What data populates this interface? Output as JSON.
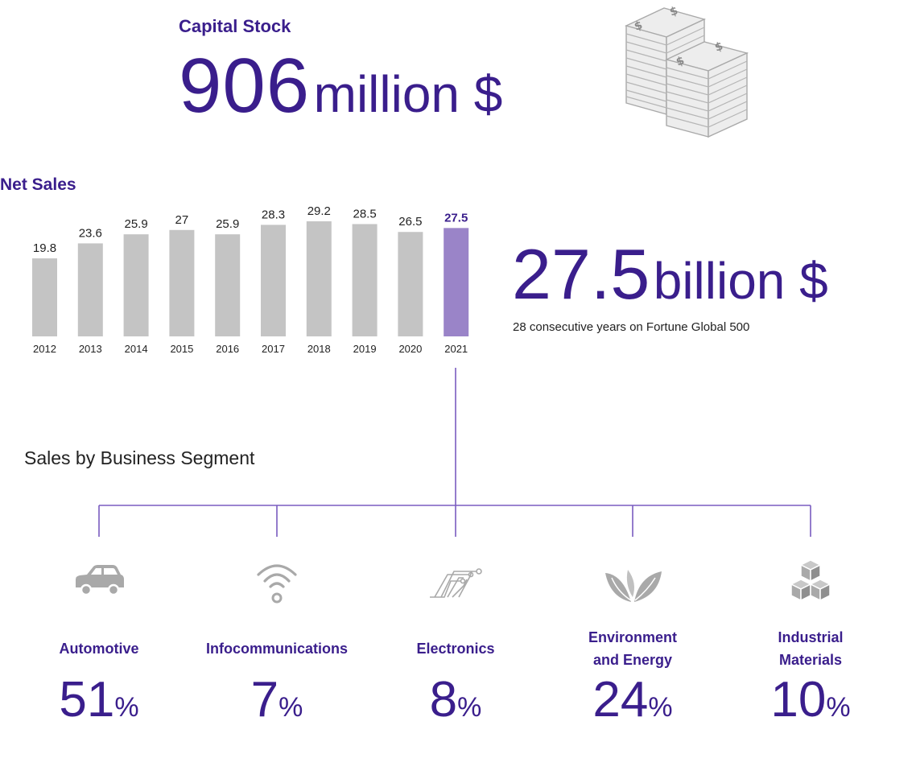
{
  "capital": {
    "label": "Capital Stock",
    "value": "906",
    "unit": "million $"
  },
  "net_sales": {
    "label": "Net Sales",
    "headline_value": "27.5",
    "headline_unit": "billion $",
    "note": "28 consecutive years on Fortune Global 500"
  },
  "segments_title": "Sales by Business Segment",
  "segments": [
    {
      "name_lines": [
        "Automotive"
      ],
      "value": "51",
      "sign": "%",
      "icon": "car-icon"
    },
    {
      "name_lines": [
        "Infocommunications"
      ],
      "value": "7",
      "sign": "%",
      "icon": "wifi-icon"
    },
    {
      "name_lines": [
        "Electronics"
      ],
      "value": "8",
      "sign": "%",
      "icon": "circuit-icon"
    },
    {
      "name_lines": [
        "Environment",
        "and Energy"
      ],
      "value": "24",
      "sign": "%",
      "icon": "leaf-icon"
    },
    {
      "name_lines": [
        "Industrial",
        "Materials"
      ],
      "value": "10",
      "sign": "%",
      "icon": "cubes-icon"
    }
  ],
  "colors": {
    "accent": "#3a1e8c",
    "bar": "#c4c4c4",
    "bar_highlight": "#9a84c8",
    "icon": "#a9a9a9",
    "connector": "#7a5cc0"
  },
  "chart_data": {
    "type": "bar",
    "categories": [
      "2012",
      "2013",
      "2014",
      "2015",
      "2016",
      "2017",
      "2018",
      "2019",
      "2020",
      "2021"
    ],
    "values": [
      19.8,
      23.6,
      25.9,
      27,
      25.9,
      28.3,
      29.2,
      28.5,
      26.5,
      27.5
    ],
    "value_labels": [
      "19.8",
      "23.6",
      "25.9",
      "27",
      "25.9",
      "28.3",
      "29.2",
      "28.5",
      "26.5",
      "27.5"
    ],
    "highlight_index": 9,
    "title": "Net Sales",
    "xlabel": "",
    "ylabel": "",
    "ylim": [
      0,
      29.2
    ],
    "grid": false
  }
}
